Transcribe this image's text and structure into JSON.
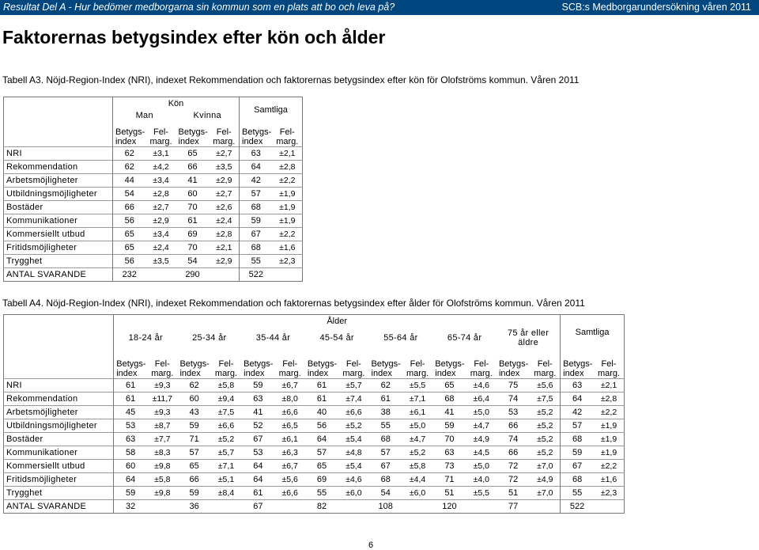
{
  "header": {
    "left": "Resultat Del A - Hur bedömer medborgarna sin kommun som en plats att bo och leva på?",
    "right": "SCB:s Medborgarundersökning våren 2011"
  },
  "title": "Faktorernas betygsindex efter kön och ålder",
  "table1": {
    "caption": "Tabell A3. Nöjd-Region-Index (NRI), indexet Rekommendation och faktorernas betygsindex efter kön för Olofströms kommun. Våren 2011",
    "group_label": "Kön",
    "groups": [
      "Man",
      "Kvinna"
    ],
    "total_label": "Samtliga",
    "sub_index": "Betygs-\nindex",
    "sub_marg": "Fel-\nmarg.",
    "rows": [
      {
        "label": "NRI",
        "v": [
          "62",
          "±3,1",
          "65",
          "±2,7",
          "63",
          "±2,1"
        ]
      },
      {
        "label": "Rekommendation",
        "v": [
          "62",
          "±4,2",
          "66",
          "±3,5",
          "64",
          "±2,8"
        ]
      },
      {
        "label": "Arbetsmöjligheter",
        "v": [
          "44",
          "±3,4",
          "41",
          "±2,9",
          "42",
          "±2,2"
        ]
      },
      {
        "label": "Utbildningsmöjligheter",
        "v": [
          "54",
          "±2,8",
          "60",
          "±2,7",
          "57",
          "±1,9"
        ]
      },
      {
        "label": "Bostäder",
        "v": [
          "66",
          "±2,7",
          "70",
          "±2,6",
          "68",
          "±1,9"
        ]
      },
      {
        "label": "Kommunikationer",
        "v": [
          "56",
          "±2,9",
          "61",
          "±2,4",
          "59",
          "±1,9"
        ]
      },
      {
        "label": "Kommersiellt utbud",
        "v": [
          "65",
          "±3,4",
          "69",
          "±2,8",
          "67",
          "±2,2"
        ]
      },
      {
        "label": "Fritidsmöjligheter",
        "v": [
          "65",
          "±2,4",
          "70",
          "±2,1",
          "68",
          "±1,6"
        ]
      },
      {
        "label": "Trygghet",
        "v": [
          "56",
          "±3,5",
          "54",
          "±2,9",
          "55",
          "±2,3"
        ]
      }
    ],
    "respondents": {
      "label": "ANTAL SVARANDE",
      "v": [
        "232",
        "",
        "290",
        "",
        "522",
        ""
      ]
    }
  },
  "table2": {
    "caption": "Tabell A4. Nöjd-Region-Index (NRI), indexet Rekommendation och faktorernas betygsindex efter ålder för Olofströms kommun. Våren 2011",
    "group_label": "Ålder",
    "groups": [
      "18-24 år",
      "25-34 år",
      "35-44 år",
      "45-54 år",
      "55-64 år",
      "65-74 år",
      "75 år eller\näldre"
    ],
    "total_label": "Samtliga",
    "sub_index": "Betygs-\nindex",
    "sub_marg": "Fel-\nmarg.",
    "rows": [
      {
        "label": "NRI",
        "v": [
          "61",
          "±9,3",
          "62",
          "±5,8",
          "59",
          "±6,7",
          "61",
          "±5,7",
          "62",
          "±5,5",
          "65",
          "±4,6",
          "75",
          "±5,6",
          "63",
          "±2,1"
        ]
      },
      {
        "label": "Rekommendation",
        "v": [
          "61",
          "±11,7",
          "60",
          "±9,4",
          "63",
          "±8,0",
          "61",
          "±7,4",
          "61",
          "±7,1",
          "68",
          "±6,4",
          "74",
          "±7,5",
          "64",
          "±2,8"
        ]
      },
      {
        "label": "Arbetsmöjligheter",
        "v": [
          "45",
          "±9,3",
          "43",
          "±7,5",
          "41",
          "±6,6",
          "40",
          "±6,6",
          "38",
          "±6,1",
          "41",
          "±5,0",
          "53",
          "±5,2",
          "42",
          "±2,2"
        ]
      },
      {
        "label": "Utbildningsmöjligheter",
        "v": [
          "53",
          "±8,7",
          "59",
          "±6,6",
          "52",
          "±6,5",
          "56",
          "±5,2",
          "55",
          "±5,0",
          "59",
          "±4,7",
          "66",
          "±5,2",
          "57",
          "±1,9"
        ]
      },
      {
        "label": "Bostäder",
        "v": [
          "63",
          "±7,7",
          "71",
          "±5,2",
          "67",
          "±6,1",
          "64",
          "±5,4",
          "68",
          "±4,7",
          "70",
          "±4,9",
          "74",
          "±5,2",
          "68",
          "±1,9"
        ]
      },
      {
        "label": "Kommunikationer",
        "v": [
          "58",
          "±8,3",
          "57",
          "±5,7",
          "53",
          "±6,3",
          "57",
          "±4,8",
          "57",
          "±5,2",
          "63",
          "±4,5",
          "66",
          "±5,2",
          "59",
          "±1,9"
        ]
      },
      {
        "label": "Kommersiellt utbud",
        "v": [
          "60",
          "±9,8",
          "65",
          "±7,1",
          "64",
          "±6,7",
          "65",
          "±5,4",
          "67",
          "±5,8",
          "73",
          "±5,0",
          "72",
          "±7,0",
          "67",
          "±2,2"
        ]
      },
      {
        "label": "Fritidsmöjligheter",
        "v": [
          "64",
          "±5,8",
          "66",
          "±5,1",
          "64",
          "±5,6",
          "69",
          "±4,6",
          "68",
          "±4,4",
          "71",
          "±4,0",
          "72",
          "±4,9",
          "68",
          "±1,6"
        ]
      },
      {
        "label": "Trygghet",
        "v": [
          "59",
          "±9,8",
          "59",
          "±8,4",
          "61",
          "±6,6",
          "55",
          "±6,0",
          "54",
          "±6,0",
          "51",
          "±5,5",
          "51",
          "±7,0",
          "55",
          "±2,3"
        ]
      }
    ],
    "respondents": {
      "label": "ANTAL SVARANDE",
      "v": [
        "32",
        "",
        "36",
        "",
        "67",
        "",
        "82",
        "",
        "108",
        "",
        "120",
        "",
        "77",
        "",
        "522",
        ""
      ]
    }
  },
  "page_number": "6"
}
